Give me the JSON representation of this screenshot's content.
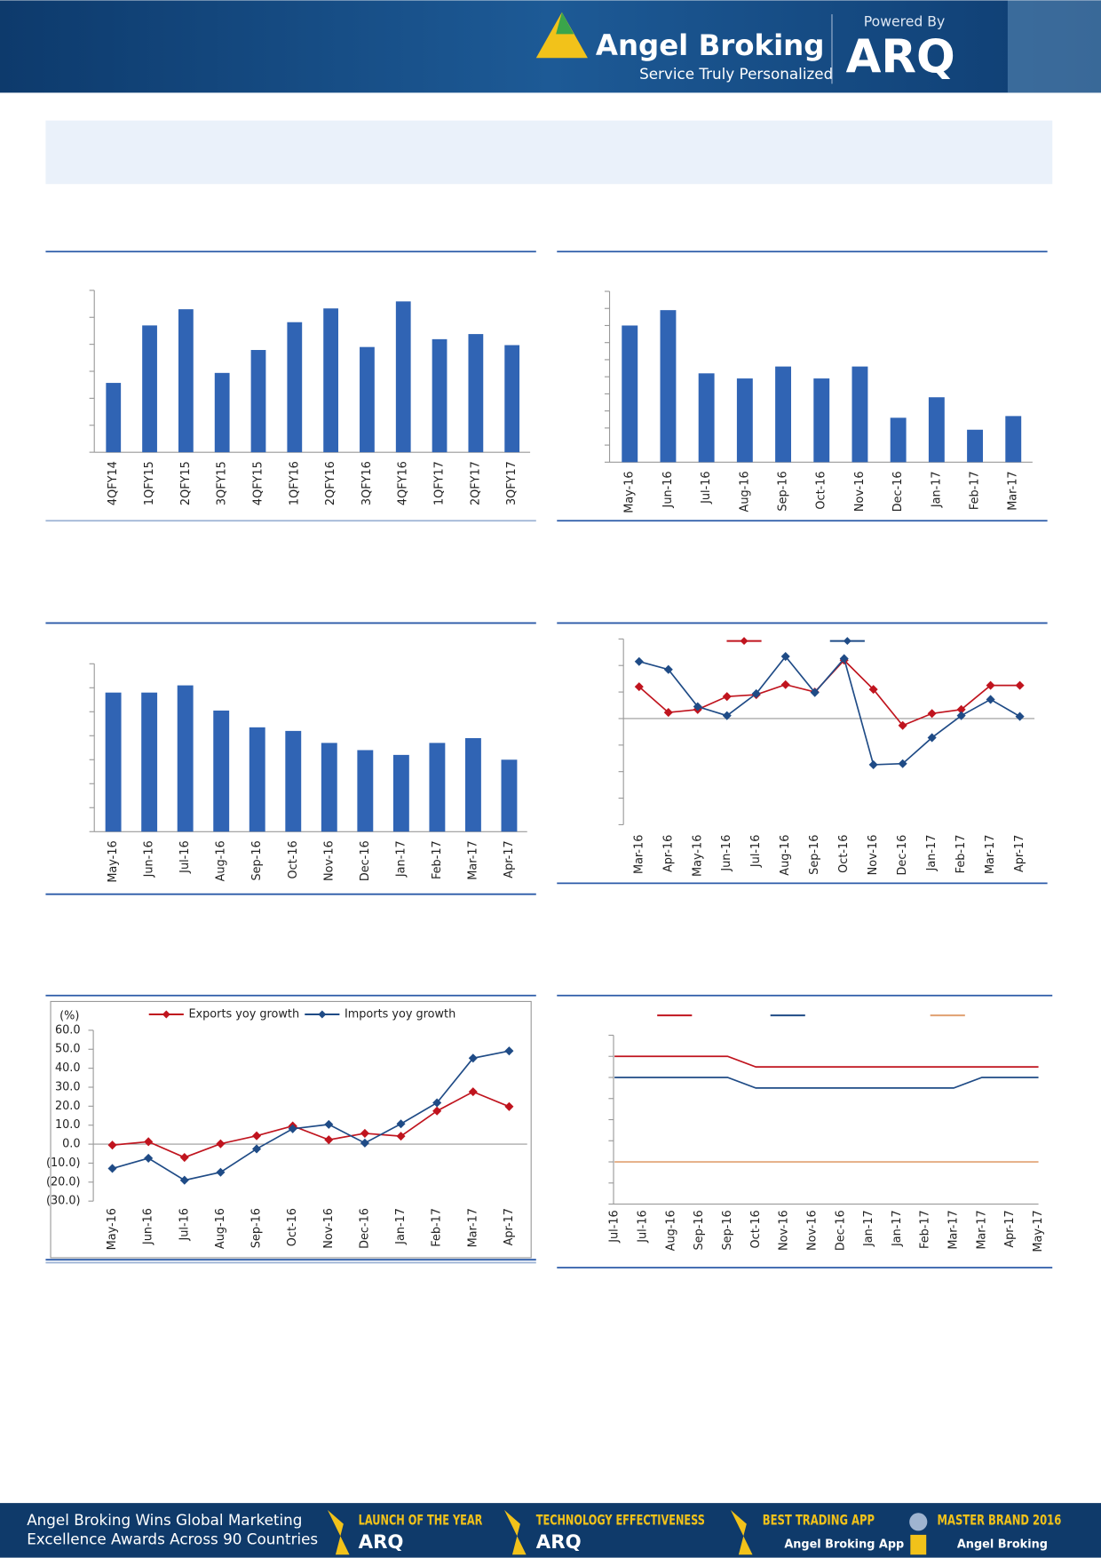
{
  "header": {
    "brand": "Angel Broking",
    "tagline": "Service Truly Personalized",
    "powered_by": "Powered By",
    "product": "ARQ"
  },
  "footer": {
    "headline": [
      "Angel Broking Wins Global Marketing",
      "Excellence Awards Across 90 Countries"
    ],
    "awards": [
      {
        "title": "LAUNCH OF THE YEAR",
        "brand": "ARQ"
      },
      {
        "title": "TECHNOLOGY EFFECTIVENESS",
        "brand": "ARQ"
      },
      {
        "title": "BEST TRADING APP",
        "brand": "Angel Broking App"
      },
      {
        "title": "MASTER BRAND 2016",
        "brand": "Angel Broking"
      }
    ]
  },
  "chart_data": [
    {
      "type": "bar",
      "categories": [
        "4QFY14",
        "1QFY15",
        "2QFY15",
        "3QFY15",
        "4QFY15",
        "1QFY16",
        "2QFY16",
        "3QFY16",
        "4QFY16",
        "1QFY17",
        "2QFY17",
        "3QFY17"
      ],
      "values": [
        2.57,
        4.7,
        5.3,
        2.94,
        3.79,
        4.82,
        5.33,
        3.9,
        5.59,
        4.19,
        4.38,
        3.97
      ],
      "color": "#3064b4",
      "ylim": [
        0,
        6
      ],
      "yticks": [
        0,
        1,
        2,
        3,
        4,
        5,
        6
      ],
      "ytick_labels": false
    },
    {
      "type": "bar",
      "categories": [
        "May-16",
        "Jun-16",
        "Jul-16",
        "Aug-16",
        "Sep-16",
        "Oct-16",
        "Nov-16",
        "Dec-16",
        "Jan-17",
        "Feb-17",
        "Mar-17"
      ],
      "values": [
        8.0,
        8.9,
        5.2,
        4.9,
        5.6,
        4.9,
        5.6,
        2.6,
        3.8,
        1.9,
        2.7
      ],
      "color": "#3064b4",
      "ylim": [
        0,
        10
      ],
      "yticks": [
        0,
        1,
        2,
        3,
        4,
        5,
        6,
        7,
        8,
        9,
        10
      ],
      "ytick_labels": false
    },
    {
      "type": "bar",
      "categories": [
        "May-16",
        "Jun-16",
        "Jul-16",
        "Aug-16",
        "Sep-16",
        "Oct-16",
        "Nov-16",
        "Dec-16",
        "Jan-17",
        "Feb-17",
        "Mar-17",
        "Apr-17"
      ],
      "values": [
        5.8,
        5.8,
        6.1,
        5.05,
        4.35,
        4.2,
        3.7,
        3.4,
        3.2,
        3.7,
        3.9,
        3.0
      ],
      "color": "#3064b4",
      "ylim": [
        0,
        7
      ],
      "yticks": [
        0,
        1,
        2,
        3,
        4,
        5,
        6,
        7
      ],
      "ytick_labels": false
    },
    {
      "type": "line",
      "categories": [
        "Mar-16",
        "Apr-16",
        "May-16",
        "Jun-16",
        "Jul-16",
        "Aug-16",
        "Sep-16",
        "Oct-16",
        "Nov-16",
        "Dec-16",
        "Jan-17",
        "Feb-17",
        "Mar-17",
        "Apr-17"
      ],
      "series": [
        {
          "color": "#c0141e",
          "values": [
            1.2,
            0.23,
            0.34,
            0.83,
            0.9,
            1.28,
            1.0,
            2.2,
            1.1,
            -0.26,
            0.19,
            0.34,
            1.25,
            1.25
          ]
        },
        {
          "color": "#1f4b86",
          "values": [
            2.15,
            1.85,
            0.45,
            0.11,
            0.94,
            2.34,
            0.98,
            2.26,
            -1.74,
            -1.7,
            -0.72,
            0.11,
            0.72,
            0.08
          ]
        }
      ],
      "ylim": [
        -4,
        3
      ],
      "yticks": [
        -4,
        -3,
        -2,
        -1,
        0,
        1,
        2,
        3
      ],
      "ytick_labels": false,
      "markers": true,
      "legend": true
    },
    {
      "type": "line",
      "ylabel": "(%)",
      "categories": [
        "May-16",
        "Jun-16",
        "Jul-16",
        "Aug-16",
        "Sep-16",
        "Oct-16",
        "Nov-16",
        "Dec-16",
        "Jan-17",
        "Feb-17",
        "Mar-17",
        "Apr-17"
      ],
      "series": [
        {
          "name": "Exports yoy growth",
          "color": "#c0141e",
          "values": [
            -0.5,
            1.3,
            -7.0,
            0.2,
            4.4,
            9.6,
            2.3,
            5.7,
            4.2,
            17.5,
            27.6,
            19.8
          ]
        },
        {
          "name": "Imports yoy growth",
          "color": "#1f4b86",
          "values": [
            -12.8,
            -7.4,
            -19.0,
            -14.8,
            -2.5,
            8.1,
            10.4,
            0.6,
            10.7,
            21.8,
            45.3,
            49.1
          ]
        }
      ],
      "ylim": [
        -30,
        60
      ],
      "yticks": [
        {
          "value": -30,
          "label": "(30.0)"
        },
        {
          "value": -20,
          "label": "(20.0)"
        },
        {
          "value": -10,
          "label": "(10.0)"
        },
        {
          "value": 0,
          "label": "0.0"
        },
        {
          "value": 10,
          "label": "10.0"
        },
        {
          "value": 20,
          "label": "20.0"
        },
        {
          "value": 30,
          "label": "30.0"
        },
        {
          "value": 40,
          "label": "40.0"
        },
        {
          "value": 50,
          "label": "50.0"
        },
        {
          "value": 60,
          "label": "60.0"
        }
      ],
      "ytick_labels": true,
      "markers": true,
      "legend": true
    },
    {
      "type": "line",
      "categories": [
        "Jul-16",
        "Jul-16",
        "Aug-16",
        "Sep-16",
        "Sep-16",
        "Oct-16",
        "Nov-16",
        "Nov-16",
        "Dec-16",
        "Jan-17",
        "Jan-17",
        "Feb-17",
        "Mar-17",
        "Mar-17",
        "Apr-17",
        "May-17"
      ],
      "series": [
        {
          "color": "#c0141e",
          "values": [
            6.5,
            6.5,
            6.5,
            6.5,
            6.5,
            6.25,
            6.25,
            6.25,
            6.25,
            6.25,
            6.25,
            6.25,
            6.25,
            6.25,
            6.25,
            6.25
          ]
        },
        {
          "color": "#1f4b86",
          "values": [
            6.0,
            6.0,
            6.0,
            6.0,
            6.0,
            5.75,
            5.75,
            5.75,
            5.75,
            5.75,
            5.75,
            5.75,
            5.75,
            6.0,
            6.0,
            6.0
          ]
        },
        {
          "color": "#e0a070",
          "values": [
            4.0,
            4.0,
            4.0,
            4.0,
            4.0,
            4.0,
            4.0,
            4.0,
            4.0,
            4.0,
            4.0,
            4.0,
            4.0,
            4.0,
            4.0,
            4.0
          ]
        }
      ],
      "ylim": [
        3,
        7
      ],
      "yticks": [
        3,
        3.5,
        4,
        4.5,
        5,
        5.5,
        6,
        6.5,
        7
      ],
      "ytick_labels": false,
      "markers": false,
      "legend": true
    }
  ]
}
